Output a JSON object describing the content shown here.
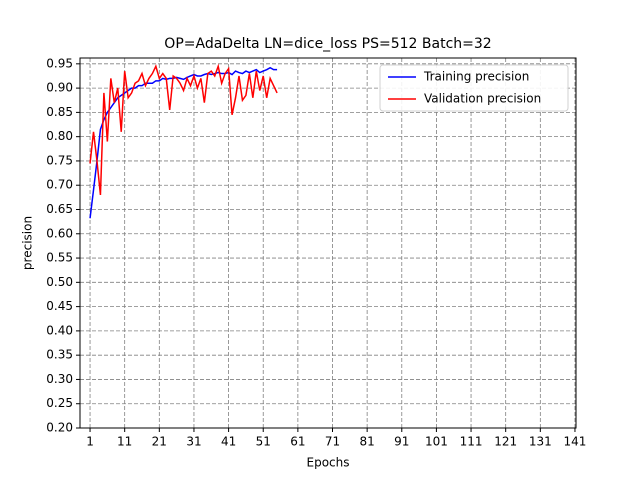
{
  "chart_data": {
    "type": "line",
    "title": "OP=AdaDelta LN=dice_loss PS=512 Batch=32",
    "x_label": "Epochs",
    "y_label": "precision",
    "x": [
      1,
      2,
      3,
      4,
      5,
      6,
      7,
      8,
      9,
      10,
      11,
      12,
      13,
      14,
      15,
      16,
      17,
      18,
      19,
      20,
      21,
      22,
      23,
      24,
      25,
      26,
      27,
      28,
      29,
      30,
      31,
      32,
      33,
      34,
      35,
      36,
      37,
      38,
      39,
      40,
      41,
      42,
      43,
      44,
      45,
      46,
      47,
      48,
      49,
      50,
      51,
      52,
      53,
      54,
      55
    ],
    "series": [
      {
        "name": "Training precision",
        "color": "#0000ff",
        "values": [
          0.632,
          0.69,
          0.75,
          0.815,
          0.835,
          0.85,
          0.86,
          0.87,
          0.88,
          0.885,
          0.89,
          0.895,
          0.9,
          0.9,
          0.905,
          0.905,
          0.91,
          0.91,
          0.91,
          0.915,
          0.915,
          0.92,
          0.918,
          0.92,
          0.92,
          0.922,
          0.92,
          0.918,
          0.922,
          0.925,
          0.928,
          0.925,
          0.925,
          0.928,
          0.93,
          0.928,
          0.93,
          0.932,
          0.93,
          0.93,
          0.932,
          0.928,
          0.935,
          0.932,
          0.93,
          0.935,
          0.932,
          0.935,
          0.938,
          0.932,
          0.935,
          0.938,
          0.942,
          0.938,
          0.938
        ]
      },
      {
        "name": "Validation precision",
        "color": "#ff0000",
        "values": [
          0.745,
          0.81,
          0.75,
          0.68,
          0.89,
          0.79,
          0.92,
          0.87,
          0.9,
          0.81,
          0.935,
          0.88,
          0.89,
          0.91,
          0.915,
          0.93,
          0.905,
          0.92,
          0.93,
          0.945,
          0.92,
          0.93,
          0.92,
          0.855,
          0.925,
          0.92,
          0.91,
          0.895,
          0.92,
          0.905,
          0.925,
          0.9,
          0.92,
          0.87,
          0.93,
          0.935,
          0.925,
          0.945,
          0.91,
          0.93,
          0.94,
          0.845,
          0.88,
          0.925,
          0.875,
          0.885,
          0.93,
          0.88,
          0.935,
          0.895,
          0.925,
          0.88,
          0.92,
          0.905,
          0.89
        ]
      }
    ],
    "xlim": [
      -1.9,
      141.3
    ],
    "xticks": [
      1,
      11,
      21,
      31,
      41,
      51,
      61,
      71,
      81,
      91,
      101,
      111,
      121,
      131,
      141
    ],
    "ylim": [
      0.2,
      0.962
    ],
    "yticks": [
      {
        "value": 0.2,
        "label": "0.20"
      },
      {
        "value": 0.25,
        "label": "0.25"
      },
      {
        "value": 0.3,
        "label": "0.30"
      },
      {
        "value": 0.35,
        "label": "0.35"
      },
      {
        "value": 0.4,
        "label": "0.40"
      },
      {
        "value": 0.45,
        "label": "0.45"
      },
      {
        "value": 0.5,
        "label": "0.50"
      },
      {
        "value": 0.55,
        "label": "0.55"
      },
      {
        "value": 0.6,
        "label": "0.60"
      },
      {
        "value": 0.65,
        "label": "0.65"
      },
      {
        "value": 0.7,
        "label": "0.70"
      },
      {
        "value": 0.75,
        "label": "0.75"
      },
      {
        "value": 0.8,
        "label": "0.80"
      },
      {
        "value": 0.85,
        "label": "0.85"
      },
      {
        "value": 0.9,
        "label": "0.90"
      },
      {
        "value": 0.95,
        "label": "0.95"
      }
    ],
    "grid": true,
    "legend": "upper right"
  }
}
